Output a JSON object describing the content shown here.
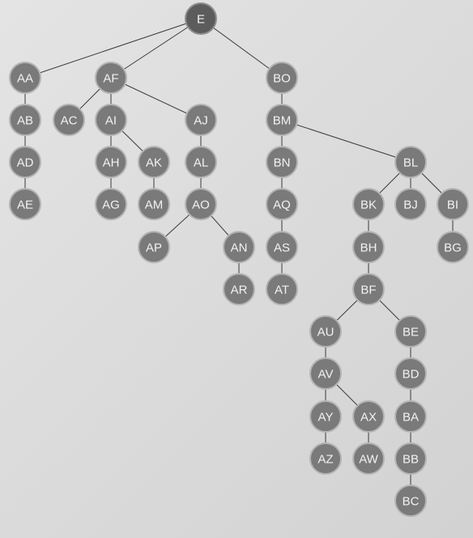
{
  "tree": {
    "root": "E",
    "nodes": [
      "E",
      "AA",
      "AF",
      "BO",
      "AB",
      "AC",
      "AI",
      "AJ",
      "BM",
      "AD",
      "AH",
      "AK",
      "AL",
      "BN",
      "BL",
      "AE",
      "AG",
      "AM",
      "AO",
      "AQ",
      "BK",
      "BJ",
      "BI",
      "AP",
      "AN",
      "AS",
      "BH",
      "BG",
      "AR",
      "AT",
      "BF",
      "AU",
      "BE",
      "AV",
      "BD",
      "AY",
      "AX",
      "BA",
      "AZ",
      "AW",
      "BB",
      "BC"
    ],
    "edges": [
      [
        "E",
        "AA"
      ],
      [
        "E",
        "AF"
      ],
      [
        "E",
        "BO"
      ],
      [
        "AA",
        "AB"
      ],
      [
        "AB",
        "AD"
      ],
      [
        "AD",
        "AE"
      ],
      [
        "AF",
        "AC"
      ],
      [
        "AF",
        "AI"
      ],
      [
        "AF",
        "AJ"
      ],
      [
        "AI",
        "AH"
      ],
      [
        "AI",
        "AK"
      ],
      [
        "AH",
        "AG"
      ],
      [
        "AK",
        "AM"
      ],
      [
        "AJ",
        "AL"
      ],
      [
        "AL",
        "AO"
      ],
      [
        "AO",
        "AP"
      ],
      [
        "AO",
        "AN"
      ],
      [
        "AN",
        "AR"
      ],
      [
        "BO",
        "BM"
      ],
      [
        "BM",
        "BN"
      ],
      [
        "BM",
        "BL"
      ],
      [
        "BN",
        "AQ"
      ],
      [
        "AQ",
        "AS"
      ],
      [
        "AS",
        "AT"
      ],
      [
        "BL",
        "BK"
      ],
      [
        "BL",
        "BJ"
      ],
      [
        "BL",
        "BI"
      ],
      [
        "BI",
        "BG"
      ],
      [
        "BK",
        "BH"
      ],
      [
        "BH",
        "BF"
      ],
      [
        "BF",
        "AU"
      ],
      [
        "BF",
        "BE"
      ],
      [
        "AU",
        "AV"
      ],
      [
        "AV",
        "AY"
      ],
      [
        "AV",
        "AX"
      ],
      [
        "AY",
        "AZ"
      ],
      [
        "AX",
        "AW"
      ],
      [
        "BE",
        "BD"
      ],
      [
        "BD",
        "BA"
      ],
      [
        "BA",
        "BB"
      ],
      [
        "BB",
        "BC"
      ]
    ]
  }
}
